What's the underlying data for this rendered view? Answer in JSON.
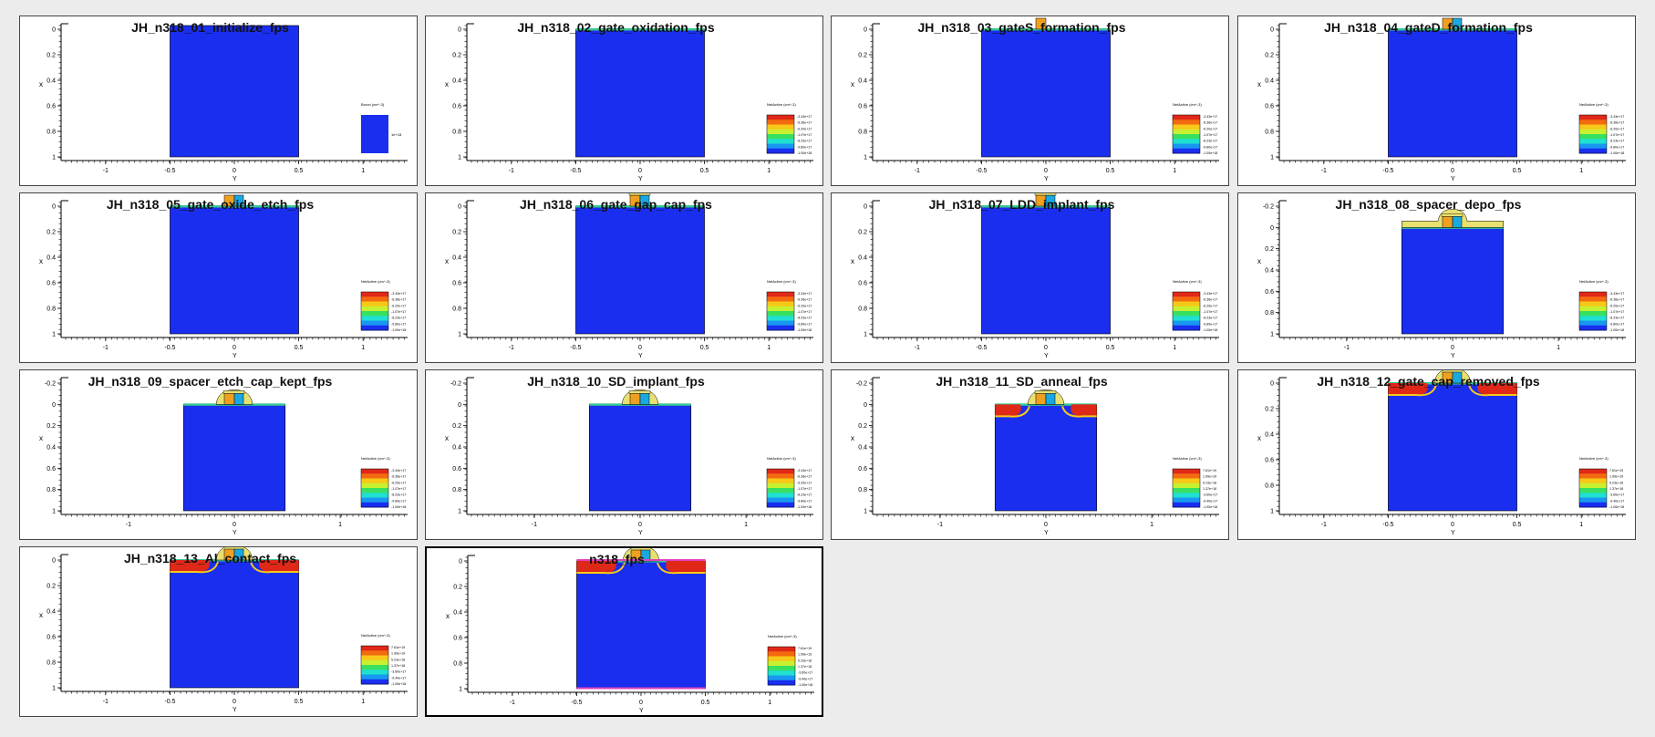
{
  "colors": {
    "background": "#ececec",
    "substrate": "#1a2ef0",
    "gate_orange": "#f0a020",
    "gate_cyan": "#1aa8e0",
    "spacer_yellow": "#e8e070",
    "oxide_green": "#38c890",
    "doping_red": "#e02818",
    "metal_magenta": "#e040c0"
  },
  "axis_text": {
    "x": "x",
    "y": "Y"
  },
  "panels": [
    {
      "title": "JH_n318_01_initialize_fps",
      "step": "initialize",
      "xticks": [
        "-1",
        "-0.5",
        "0",
        "0.5",
        "1"
      ],
      "yticks": [
        "0",
        "0.2",
        "0.4",
        "0.6",
        "0.8",
        "1"
      ],
      "legend_title": "Boron (cm^-3)",
      "legend_values": [
        "1e+18"
      ]
    },
    {
      "title": "JH_n318_02_gate_oxidation_fps",
      "step": "oxidation",
      "xticks": [
        "-1",
        "-0.5",
        "0",
        "0.5",
        "1"
      ],
      "yticks": [
        "0",
        "0.2",
        "0.4",
        "0.6",
        "0.8",
        "1"
      ],
      "legend_title": "NetActive (cm^-3)",
      "legend_values": [
        "-3.43e+17",
        "-6.36e+17",
        "-6.20e+17",
        "-1.07e+17",
        "-8.23e+17",
        "-9.80e+17",
        "-1.00e+18"
      ]
    },
    {
      "title": "JH_n318_03_gateS_formation_fps",
      "step": "gate",
      "xticks": [
        "-1",
        "-0.5",
        "0",
        "0.5",
        "1"
      ],
      "yticks": [
        "0",
        "0.2",
        "0.4",
        "0.6",
        "0.8",
        "1"
      ],
      "legend_title": "NetActive (cm^-3)",
      "legend_values": [
        "-3.43e+17",
        "-6.36e+17",
        "-6.20e+17",
        "-1.07e+17",
        "-8.23e+17",
        "-9.80e+17",
        "-1.00e+18"
      ]
    },
    {
      "title": "JH_n318_04_gateD_formation_fps",
      "step": "gate2",
      "xticks": [
        "-1",
        "-0.5",
        "0",
        "0.5",
        "1"
      ],
      "yticks": [
        "0",
        "0.2",
        "0.4",
        "0.6",
        "0.8",
        "1"
      ],
      "legend_title": "NetActive (cm^-3)",
      "legend_values": [
        "-3.43e+17",
        "-6.36e+17",
        "-6.20e+17",
        "-1.07e+17",
        "-8.23e+17",
        "-9.80e+17",
        "-1.00e+18"
      ]
    },
    {
      "title": "JH_n318_05_gate_oxide_etch_fps",
      "step": "gate2",
      "xticks": [
        "-1",
        "-0.5",
        "0",
        "0.5",
        "1"
      ],
      "yticks": [
        "0",
        "0.2",
        "0.4",
        "0.6",
        "0.8",
        "1"
      ],
      "legend_title": "NetActive (cm^-3)",
      "legend_values": [
        "-3.43e+17",
        "-6.36e+17",
        "-6.20e+17",
        "-1.07e+17",
        "-8.23e+17",
        "-9.80e+17",
        "-1.00e+18"
      ]
    },
    {
      "title": "JH_n318_06_gate_gap_cap_fps",
      "step": "cap",
      "xticks": [
        "-1",
        "-0.5",
        "0",
        "0.5",
        "1"
      ],
      "yticks": [
        "0",
        "0.2",
        "0.4",
        "0.6",
        "0.8",
        "1"
      ],
      "legend_title": "NetActive (cm^-3)",
      "legend_values": [
        "-3.43e+17",
        "-6.36e+17",
        "-6.20e+17",
        "-1.07e+17",
        "-8.23e+17",
        "-9.80e+17",
        "-1.00e+18"
      ]
    },
    {
      "title": "JH_n318_07_LDD_implant_fps",
      "step": "cap",
      "xticks": [
        "-1",
        "-0.5",
        "0",
        "0.5",
        "1"
      ],
      "yticks": [
        "0",
        "0.2",
        "0.4",
        "0.6",
        "0.8",
        "1"
      ],
      "legend_title": "NetActive (cm^-3)",
      "legend_values": [
        "-3.43e+17",
        "-6.36e+17",
        "-6.20e+17",
        "-1.07e+17",
        "-8.23e+17",
        "-9.80e+17",
        "-1.00e+18"
      ]
    },
    {
      "title": "JH_n318_08_spacer_depo_fps",
      "step": "spacerdepo",
      "xticks": [
        "-1",
        "0",
        "1"
      ],
      "yticks": [
        "-0.2",
        "0",
        "0.2",
        "0.4",
        "0.6",
        "0.8",
        "1"
      ],
      "legend_title": "NetActive (cm^-3)",
      "legend_values": [
        "-3.43e+17",
        "-6.36e+17",
        "-6.20e+17",
        "-1.07e+17",
        "-8.23e+17",
        "-9.80e+17",
        "-1.00e+18"
      ]
    },
    {
      "title": "JH_n318_09_spacer_etch_cap_kept_fps",
      "step": "spacer",
      "xticks": [
        "-1",
        "0",
        "1"
      ],
      "yticks": [
        "-0.2",
        "0",
        "0.2",
        "0.4",
        "0.6",
        "0.8",
        "1"
      ],
      "legend_title": "NetActive (cm^-3)",
      "legend_values": [
        "-3.43e+17",
        "-6.36e+17",
        "-6.20e+17",
        "-1.07e+17",
        "-8.23e+17",
        "-9.80e+17",
        "-1.00e+18"
      ]
    },
    {
      "title": "JH_n318_10_SD_implant_fps",
      "step": "spacer",
      "xticks": [
        "-1",
        "0",
        "1"
      ],
      "yticks": [
        "-0.2",
        "0",
        "0.2",
        "0.4",
        "0.6",
        "0.8",
        "1"
      ],
      "legend_title": "NetActive (cm^-3)",
      "legend_values": [
        "-3.43e+17",
        "-6.36e+17",
        "-6.20e+17",
        "-1.07e+17",
        "-8.23e+17",
        "-9.80e+17",
        "-1.00e+18"
      ]
    },
    {
      "title": "JH_n318_11_SD_anneal_fps",
      "step": "anneal",
      "xticks": [
        "-1",
        "0",
        "1"
      ],
      "yticks": [
        "-0.2",
        "0",
        "0.2",
        "0.4",
        "0.6",
        "0.8",
        "1"
      ],
      "legend_title": "NetActive (cm^-3)",
      "legend_values": [
        "7.61e+19",
        "1.99e+19",
        "5.23e+18",
        "1.37e+18",
        "-3.60e+17",
        "-9.40e+17",
        "-1.00e+18"
      ]
    },
    {
      "title": "JH_n318_12_gate_cap_removed_fps",
      "step": "capremoved",
      "xticks": [
        "-1",
        "-0.5",
        "0",
        "0.5",
        "1"
      ],
      "yticks": [
        "0",
        "0.2",
        "0.4",
        "0.6",
        "0.8",
        "1"
      ],
      "legend_title": "NetActive (cm^-3)",
      "legend_values": [
        "7.61e+19",
        "1.99e+19",
        "5.23e+18",
        "1.37e+18",
        "-3.60e+17",
        "-9.40e+17",
        "-1.00e+18"
      ]
    },
    {
      "title": "JH_n318_13_Al_contact_fps",
      "step": "capremoved",
      "xticks": [
        "-1",
        "-0.5",
        "0",
        "0.5",
        "1"
      ],
      "yticks": [
        "0",
        "0.2",
        "0.4",
        "0.6",
        "0.8",
        "1"
      ],
      "legend_title": "NetActive (cm^-3)",
      "legend_values": [
        "7.61e+19",
        "1.99e+19",
        "5.23e+18",
        "1.37e+18",
        "-3.60e+17",
        "-9.40e+17",
        "-1.00e+18"
      ]
    },
    {
      "title": "n318_fps",
      "step": "final",
      "xticks": [
        "-1",
        "-0.5",
        "0",
        "0.5",
        "1"
      ],
      "yticks": [
        "0",
        "0.2",
        "0.4",
        "0.6",
        "0.8",
        "1"
      ],
      "legend_title": "NetActive (cm^-3)",
      "legend_values": [
        "7.61e+19",
        "1.99e+19",
        "5.23e+18",
        "1.37e+18",
        "-3.60e+17",
        "-9.40e+17",
        "-1.00e+18"
      ],
      "selected": true
    }
  ]
}
